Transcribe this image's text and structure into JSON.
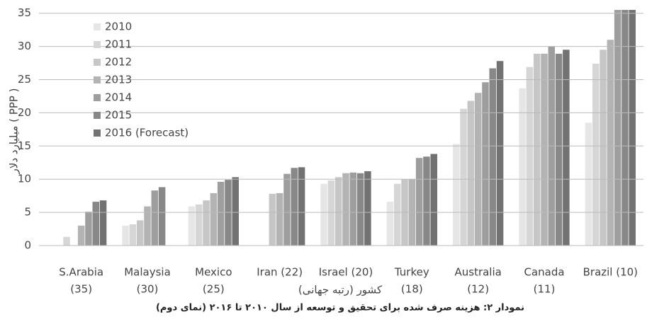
{
  "chart_data": {
    "type": "bar",
    "caption": "نمودار ۲: هزینه صرف شده برای تحقیق و توسعه از سال ۲۰۱۰ تا ۲۰۱۶ (نمای دوم)",
    "y_label": "میلیارد دلار ( PPP )",
    "x_label": "کشور (رتبه جهانی)",
    "categories": [
      [
        "S.Arabia",
        "(35)"
      ],
      [
        "Malaysia",
        "(30)"
      ],
      [
        "Mexico",
        "(25)"
      ],
      [
        "Iran (22)"
      ],
      [
        "Israel (20)"
      ],
      [
        "Turkey",
        "(18)"
      ],
      [
        "Australia",
        "(12)"
      ],
      [
        "Canada",
        "(11)"
      ],
      [
        "Brazil (10)"
      ]
    ],
    "series": [
      {
        "name": "2010",
        "color": "#e6e6e6",
        "values": [
          null,
          3.0,
          5.9,
          null,
          9.3,
          6.6,
          15.3,
          23.7,
          18.5
        ]
      },
      {
        "name": "2011",
        "color": "#d6d6d6",
        "values": [
          1.3,
          3.2,
          6.2,
          null,
          9.8,
          9.3,
          20.6,
          26.9,
          27.4
        ]
      },
      {
        "name": "2012",
        "color": "#c6c6c6",
        "values": [
          null,
          3.8,
          6.8,
          7.8,
          10.3,
          10.0,
          21.8,
          28.9,
          29.5
        ]
      },
      {
        "name": "2013",
        "color": "#b3b3b3",
        "values": [
          3.0,
          5.9,
          7.9,
          7.9,
          10.9,
          10.0,
          23.0,
          28.9,
          31.0
        ]
      },
      {
        "name": "2014",
        "color": "#9e9e9e",
        "values": [
          5.1,
          8.3,
          9.6,
          10.8,
          11.0,
          13.2,
          24.6,
          30.0,
          36
        ]
      },
      {
        "name": "2015",
        "color": "#888888",
        "values": [
          6.6,
          8.8,
          9.9,
          11.7,
          10.9,
          13.4,
          26.7,
          28.9,
          36
        ]
      },
      {
        "name": "2016 (Forecast)",
        "color": "#727272",
        "values": [
          6.8,
          null,
          10.3,
          11.8,
          11.2,
          13.8,
          27.8,
          29.5,
          36
        ]
      }
    ],
    "ylim": [
      0,
      35.5
    ],
    "yticks": [
      0,
      5,
      10,
      15,
      20,
      25,
      30,
      35
    ],
    "grid": true,
    "legend": "top-left"
  }
}
